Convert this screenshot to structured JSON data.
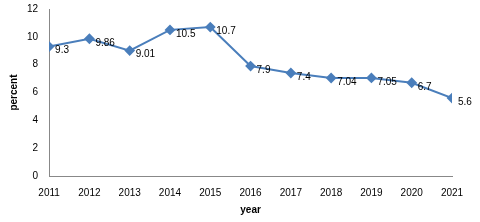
{
  "chart_data": {
    "type": "line",
    "x_label": "year",
    "y_label": "percent",
    "categories": [
      "2011",
      "2012",
      "2013",
      "2014",
      "2015",
      "2016",
      "2017",
      "2018",
      "2019",
      "2020",
      "2021"
    ],
    "values": [
      9.3,
      9.86,
      9.01,
      10.5,
      10.7,
      7.9,
      7.4,
      7.04,
      7.05,
      6.7,
      5.6
    ],
    "color": "#4a7ebb",
    "marker": "diamond",
    "line_style": "solid",
    "ylim": [
      0,
      12
    ],
    "yticks": [
      0,
      2,
      4,
      6,
      8,
      10,
      12
    ],
    "grid": false,
    "data_labels": true
  }
}
